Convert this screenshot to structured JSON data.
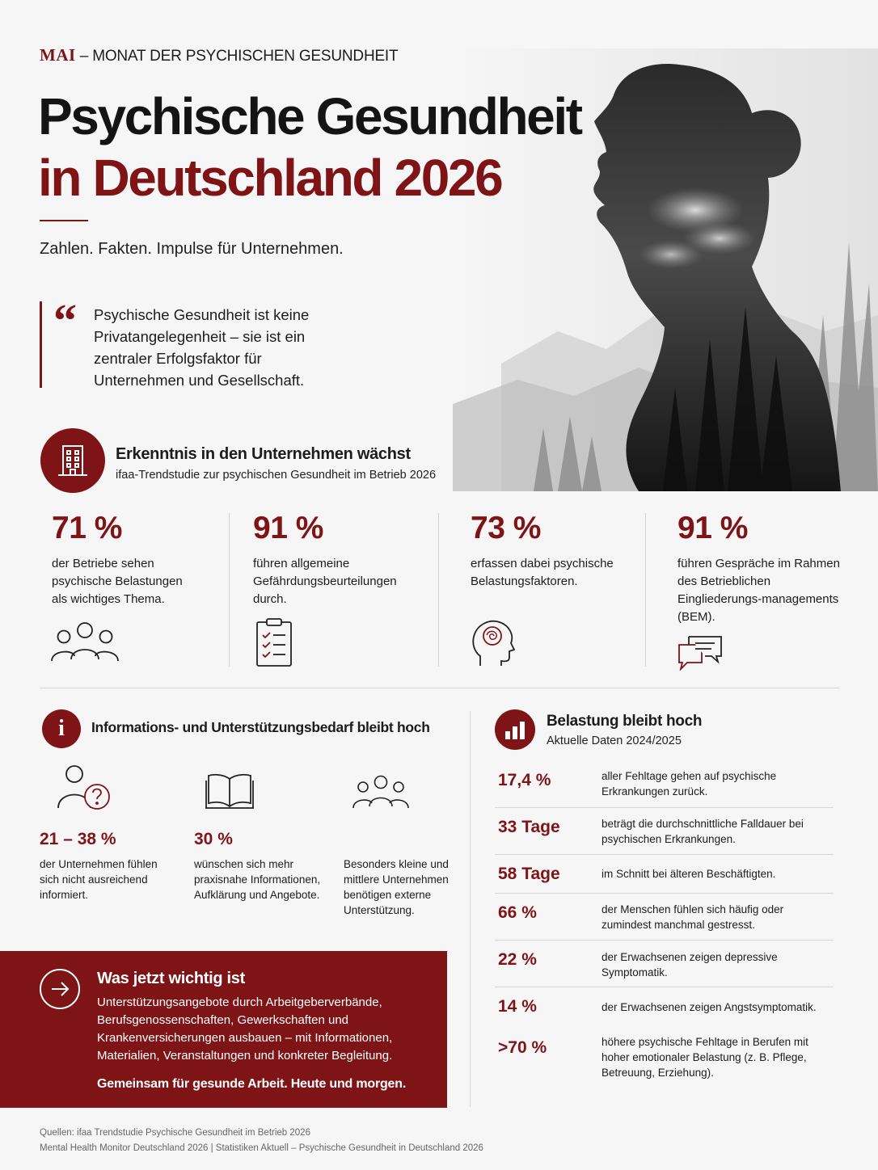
{
  "header": {
    "kicker_month": "MAI",
    "kicker_rest": " – MONAT DER PSYCHISCHEN GESUNDHEIT",
    "title_line1": "Psychische Gesundheit",
    "title_line2": "in Deutschland 2026",
    "subtitle": "Zahlen. Fakten. Impulse für Unternehmen."
  },
  "quote": {
    "mark": "“",
    "text": "Psychische Gesundheit ist keine Privatangelegenheit – sie ist ein zentraler Erfolgsfaktor für Unternehmen und Gesellschaft."
  },
  "section1": {
    "title": "Erkenntnis in den Unternehmen wächst",
    "subtitle": "ifaa-Trendstudie zur psychischen Gesundheit im Betrieb 2026",
    "stats": [
      {
        "value": "71 %",
        "text": "der Betriebe sehen psychische Belastungen als wichtiges Thema.",
        "icon": "group-icon"
      },
      {
        "value": "91 %",
        "text": "führen allgemeine Gefährdungsbeurteilungen durch.",
        "icon": "clipboard-checklist-icon"
      },
      {
        "value": "73 %",
        "text": "erfassen dabei psychische Belastungsfaktoren.",
        "icon": "head-brain-icon"
      },
      {
        "value": "91 %",
        "text": "führen Gespräche im Rahmen des Betrieblichen Eingliederungs-managements (BEM).",
        "icon": "chat-bubbles-icon"
      }
    ]
  },
  "section2": {
    "title": "Informations- und Unterstützungsbedarf bleibt hoch",
    "items": [
      {
        "value": "21 – 38 %",
        "text": "der Unternehmen fühlen sich nicht ausreichend informiert.",
        "icon": "person-question-icon"
      },
      {
        "value": "30 %",
        "text": "wünschen sich mehr praxisnahe Informationen, Aufklärung und Angebote.",
        "icon": "open-book-icon"
      },
      {
        "value": "",
        "text": "Besonders kleine und mittlere Unternehmen benötigen externe Unterstützung.",
        "icon": "group-icon"
      }
    ]
  },
  "callout": {
    "title": "Was jetzt wichtig ist",
    "body": "Unterstützungsangebote durch Arbeitgeberverbände, Berufsgenossenschaften, Gewerkschaften und Krankenversicherungen ausbauen – mit Informationen, Materialien, Veranstaltungen und konkreter Begleitung.",
    "footer": "Gemeinsam für gesunde Arbeit. Heute und morgen."
  },
  "section3": {
    "title": "Belastung bleibt hoch",
    "subtitle": "Aktuelle Daten 2024/2025",
    "rows": [
      {
        "value": "17,4 %",
        "text": "aller Fehltage gehen auf psychische Erkrankungen zurück."
      },
      {
        "value": "33 Tage",
        "text": "beträgt die durchschnittliche Falldauer bei psychischen Erkrankungen."
      },
      {
        "value": "58 Tage",
        "text": "im Schnitt bei älteren Beschäftigten."
      },
      {
        "value": "66 %",
        "text": "der Menschen fühlen sich häufig oder zumindest manchmal gestresst."
      },
      {
        "value": "22 %",
        "text": "der Erwachsenen zeigen depressive Symptomatik."
      },
      {
        "value": "14 %",
        "text": "der Erwachsenen zeigen Angstsymptomatik."
      },
      {
        "value": ">70 %",
        "text": "höhere psychische Fehltage in Berufen mit hoher emotionaler Belastung (z. B. Pflege, Betreuung, Erziehung)."
      }
    ]
  },
  "sources": {
    "line1": "Quellen: ifaa Trendstudie Psychische Gesundheit im Betrieb 2026",
    "line2": "Mental Health Monitor Deutschland 2026 | Statistiken Aktuell – Psychische Gesundheit in Deutschland 2026"
  },
  "colors": {
    "accent": "#7f1416",
    "background": "#f6f6f6",
    "text": "#1c1c1c"
  }
}
